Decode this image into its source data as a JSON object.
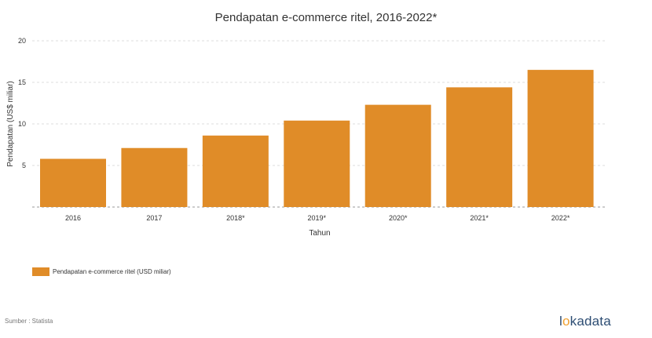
{
  "chart_data": {
    "type": "bar",
    "title": "Pendapatan e-commerce ritel, 2016-2022*",
    "xlabel": "Tahun",
    "ylabel": "Pendapatan (US$ miliar)",
    "categories": [
      "2016",
      "2017",
      "2018*",
      "2019*",
      "2020*",
      "2021*",
      "2022*"
    ],
    "series": [
      {
        "name": "Pendapatan e-commerce ritel (USD miliar)",
        "values": [
          5.8,
          7.1,
          8.6,
          10.4,
          12.3,
          14.4,
          16.5
        ]
      }
    ],
    "yticks": [
      5,
      10,
      15,
      20
    ],
    "ylim": [
      0,
      20
    ],
    "grid": true,
    "legend_position": "bottom-left",
    "bar_color": "#E08C28"
  },
  "source": "Sumber : Statista",
  "brand": "lokadata",
  "brand_color": "#2D4D73",
  "brand_accent": "#F0A030"
}
